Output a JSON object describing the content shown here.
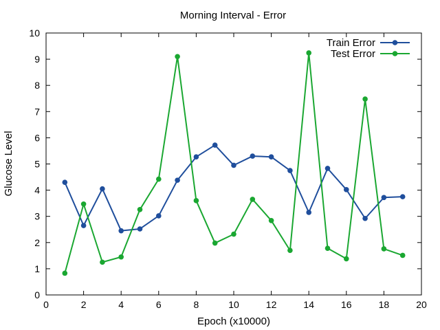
{
  "chart_data": {
    "type": "line",
    "title": "Morning Interval - Error",
    "xlabel": "Epoch (x10000)",
    "ylabel": "Glucose Level",
    "xlim": [
      0,
      20
    ],
    "ylim": [
      0,
      10
    ],
    "xticks": [
      0,
      2,
      4,
      6,
      8,
      10,
      12,
      14,
      16,
      18,
      20
    ],
    "yticks": [
      0,
      1,
      2,
      3,
      4,
      5,
      6,
      7,
      8,
      9,
      10
    ],
    "grid": false,
    "legend_position": "top-right",
    "x": [
      1,
      2,
      3,
      4,
      5,
      6,
      7,
      8,
      9,
      10,
      11,
      12,
      13,
      14,
      15,
      16,
      17,
      18,
      19
    ],
    "series": [
      {
        "name": "Train Error",
        "color": "#1f4e9c",
        "values": [
          4.3,
          2.65,
          4.05,
          2.45,
          2.52,
          3.02,
          4.38,
          5.27,
          5.72,
          4.95,
          5.3,
          5.27,
          4.75,
          3.15,
          4.83,
          4.02,
          2.92,
          3.72,
          3.75
        ]
      },
      {
        "name": "Test Error",
        "color": "#1aa731",
        "values": [
          0.83,
          3.47,
          1.25,
          1.45,
          3.26,
          4.42,
          9.1,
          3.6,
          1.98,
          2.32,
          3.65,
          2.84,
          1.7,
          9.24,
          1.78,
          1.38,
          7.48,
          1.76,
          1.51
        ]
      }
    ]
  }
}
